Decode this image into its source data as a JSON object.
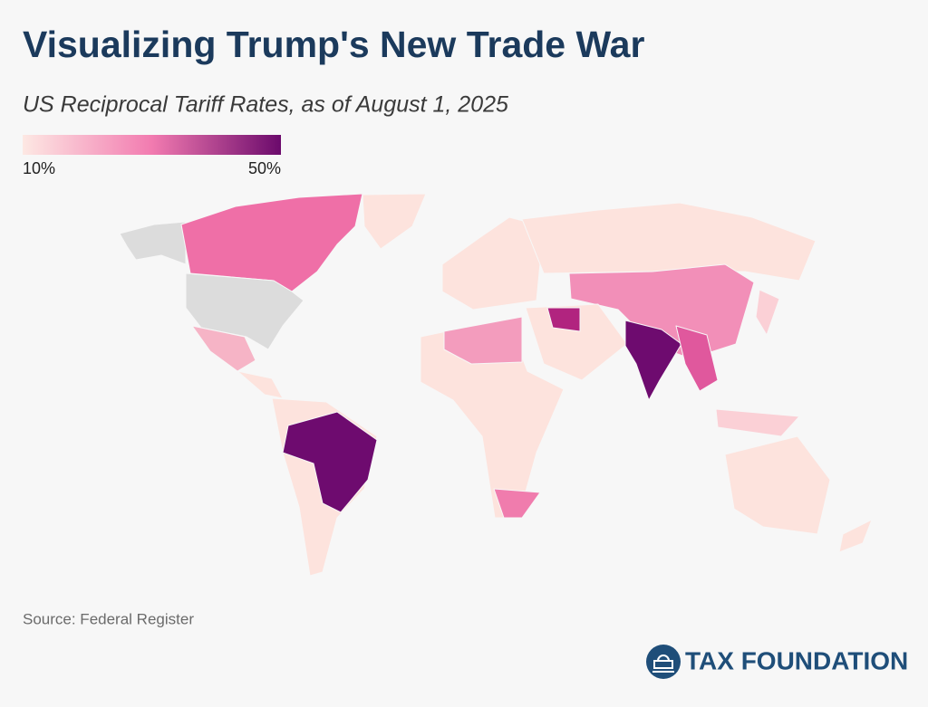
{
  "header": {
    "title": "Visualizing Trump's New Trade War",
    "subtitle": "US Reciprocal Tariff Rates, as of August 1, 2025"
  },
  "legend": {
    "min": {
      "value": 10,
      "label": "10%"
    },
    "max": {
      "value": 50,
      "label": "50%"
    },
    "colors": [
      "#fde8e3",
      "#f27bb0",
      "#6b0a6c"
    ]
  },
  "footer": {
    "source": "Source: Federal Register",
    "logo": "TAX FOUNDATION"
  }
}
